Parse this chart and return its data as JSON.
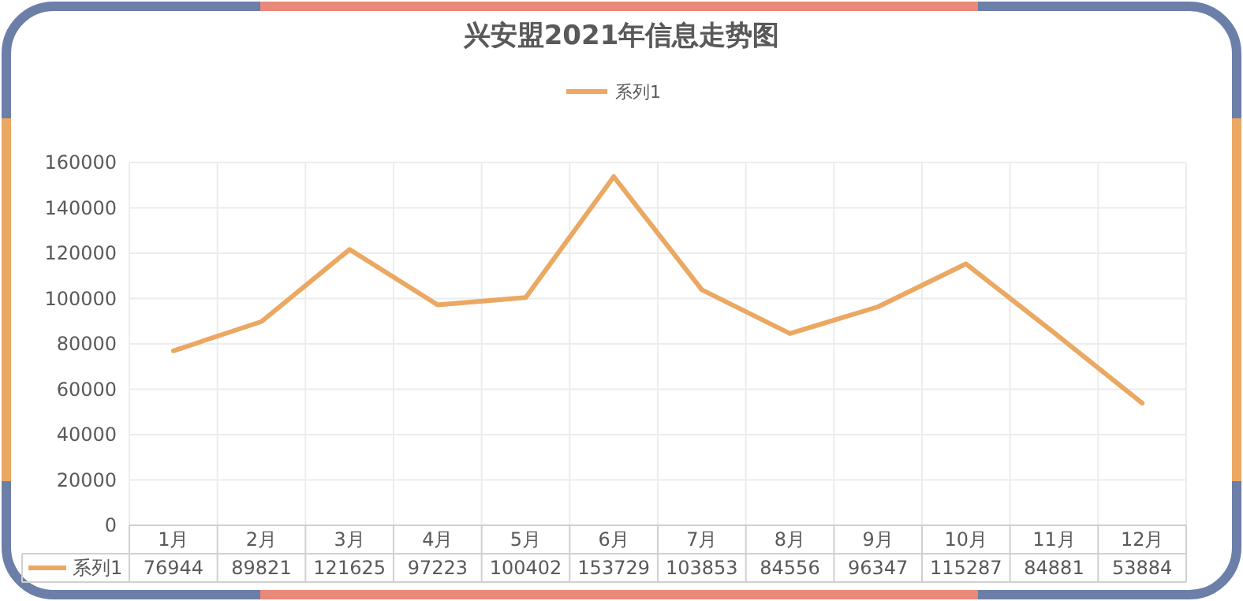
{
  "chart_data": {
    "type": "line",
    "title": "兴安盟2021年信息走势图",
    "categories": [
      "1月",
      "2月",
      "3月",
      "4月",
      "5月",
      "6月",
      "7月",
      "8月",
      "9月",
      "10月",
      "11月",
      "12月"
    ],
    "series": [
      {
        "name": "系列1",
        "color": "#eba862",
        "values": [
          76944,
          89821,
          121625,
          97223,
          100402,
          153729,
          103853,
          84556,
          96347,
          115287,
          84881,
          53884
        ]
      }
    ],
    "ylim": [
      0,
      160000
    ],
    "yticks": [
      0,
      20000,
      40000,
      60000,
      80000,
      100000,
      120000,
      140000,
      160000
    ],
    "grid": true,
    "legend": "top",
    "data_labels": true
  }
}
